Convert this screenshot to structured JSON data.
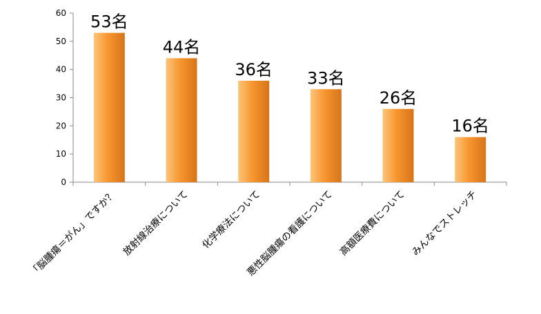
{
  "chart_data": {
    "type": "bar",
    "categories": [
      "「脳腫瘍＝がん」ですか？",
      "放射線治療について",
      "化学療法について",
      "悪性脳腫瘍の看護について",
      "高額医療費について",
      "みんなでストレッチ"
    ],
    "values": [
      53,
      44,
      36,
      33,
      26,
      16
    ],
    "data_labels": [
      "53名",
      "44名",
      "36名",
      "33名",
      "26名",
      "16名"
    ],
    "yticks": [
      0,
      10,
      20,
      30,
      40,
      50,
      60
    ],
    "ylim": [
      0,
      60
    ],
    "grid": false,
    "legend": "none",
    "title": "",
    "xlabel": "",
    "ylabel": "",
    "colors": {
      "bar_light": "#fbc57a",
      "bar_main": "#f7962e",
      "bar_dark": "#d7741a",
      "axis": "#888888"
    }
  }
}
